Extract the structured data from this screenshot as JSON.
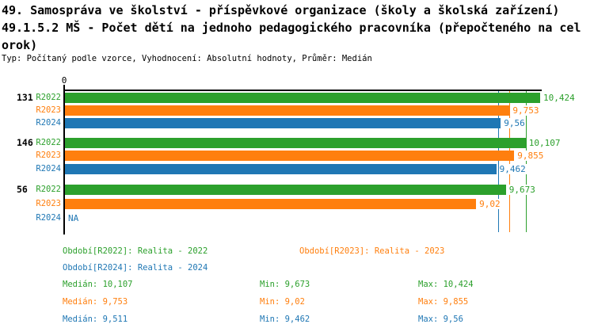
{
  "header": {
    "title_lines": [
      "49. Samospráva ve školství - příspěvkové organizace (školy a školská zařízení)",
      "49.1.5.2 MŠ - Počet dětí na jednoho pedagogického pracovníka (přepočteného na cel",
      "orok)"
    ],
    "subtitle": "Typ: Počítaný podle vzorce, Vyhodnocení: Absolutní hodnoty, Průměr: Medián"
  },
  "chart_data": {
    "type": "bar",
    "orientation": "horizontal",
    "title": "49.1.5.2 MŠ - Počet dětí na jednoho pedagogického pracovníka (přepočteného na celorok)",
    "axis": {
      "origin_label": "0",
      "origin": 0,
      "max": 10.47,
      "grid": false
    },
    "colors": {
      "R2022": "#2ca02c",
      "R2023": "#ff7f0e",
      "R2024": "#1f77b4"
    },
    "groups": [
      {
        "label": "131",
        "bars": [
          {
            "series": "R2022",
            "value": 10.424,
            "value_label": "10,424"
          },
          {
            "series": "R2023",
            "value": 9.753,
            "value_label": "9,753"
          },
          {
            "series": "R2024",
            "value": 9.56,
            "value_label": "9,56"
          }
        ]
      },
      {
        "label": "146",
        "bars": [
          {
            "series": "R2022",
            "value": 10.107,
            "value_label": "10,107"
          },
          {
            "series": "R2023",
            "value": 9.855,
            "value_label": "9,855"
          },
          {
            "series": "R2024",
            "value": 9.462,
            "value_label": "9,462"
          }
        ]
      },
      {
        "label": "56",
        "bars": [
          {
            "series": "R2022",
            "value": 9.673,
            "value_label": "9,673"
          },
          {
            "series": "R2023",
            "value": 9.02,
            "value_label": "9,02"
          },
          {
            "series": "R2024",
            "value": null,
            "value_label": "NA"
          }
        ]
      }
    ],
    "median_lines": [
      {
        "series": "R2024",
        "value": 9.511
      },
      {
        "series": "R2023",
        "value": 9.753
      },
      {
        "series": "R2022",
        "value": 10.107
      }
    ]
  },
  "legend": [
    {
      "label": "Období[R2022]: Realita - 2022",
      "color": "#2ca02c"
    },
    {
      "label": "Období[R2023]: Realita - 2023",
      "color": "#ff7f0e"
    },
    {
      "label": "Období[R2024]: Realita - 2024",
      "color": "#1f77b4"
    }
  ],
  "stats": [
    {
      "median": "Medián: 10,107",
      "min": "Min: 9,673",
      "max": "Max: 10,424",
      "color": "#2ca02c"
    },
    {
      "median": "Medián: 9,753",
      "min": "Min: 9,02",
      "max": "Max: 9,855",
      "color": "#ff7f0e"
    },
    {
      "median": "Medián: 9,511",
      "min": "Min: 9,462",
      "max": "Max: 9,56",
      "color": "#1f77b4"
    }
  ]
}
